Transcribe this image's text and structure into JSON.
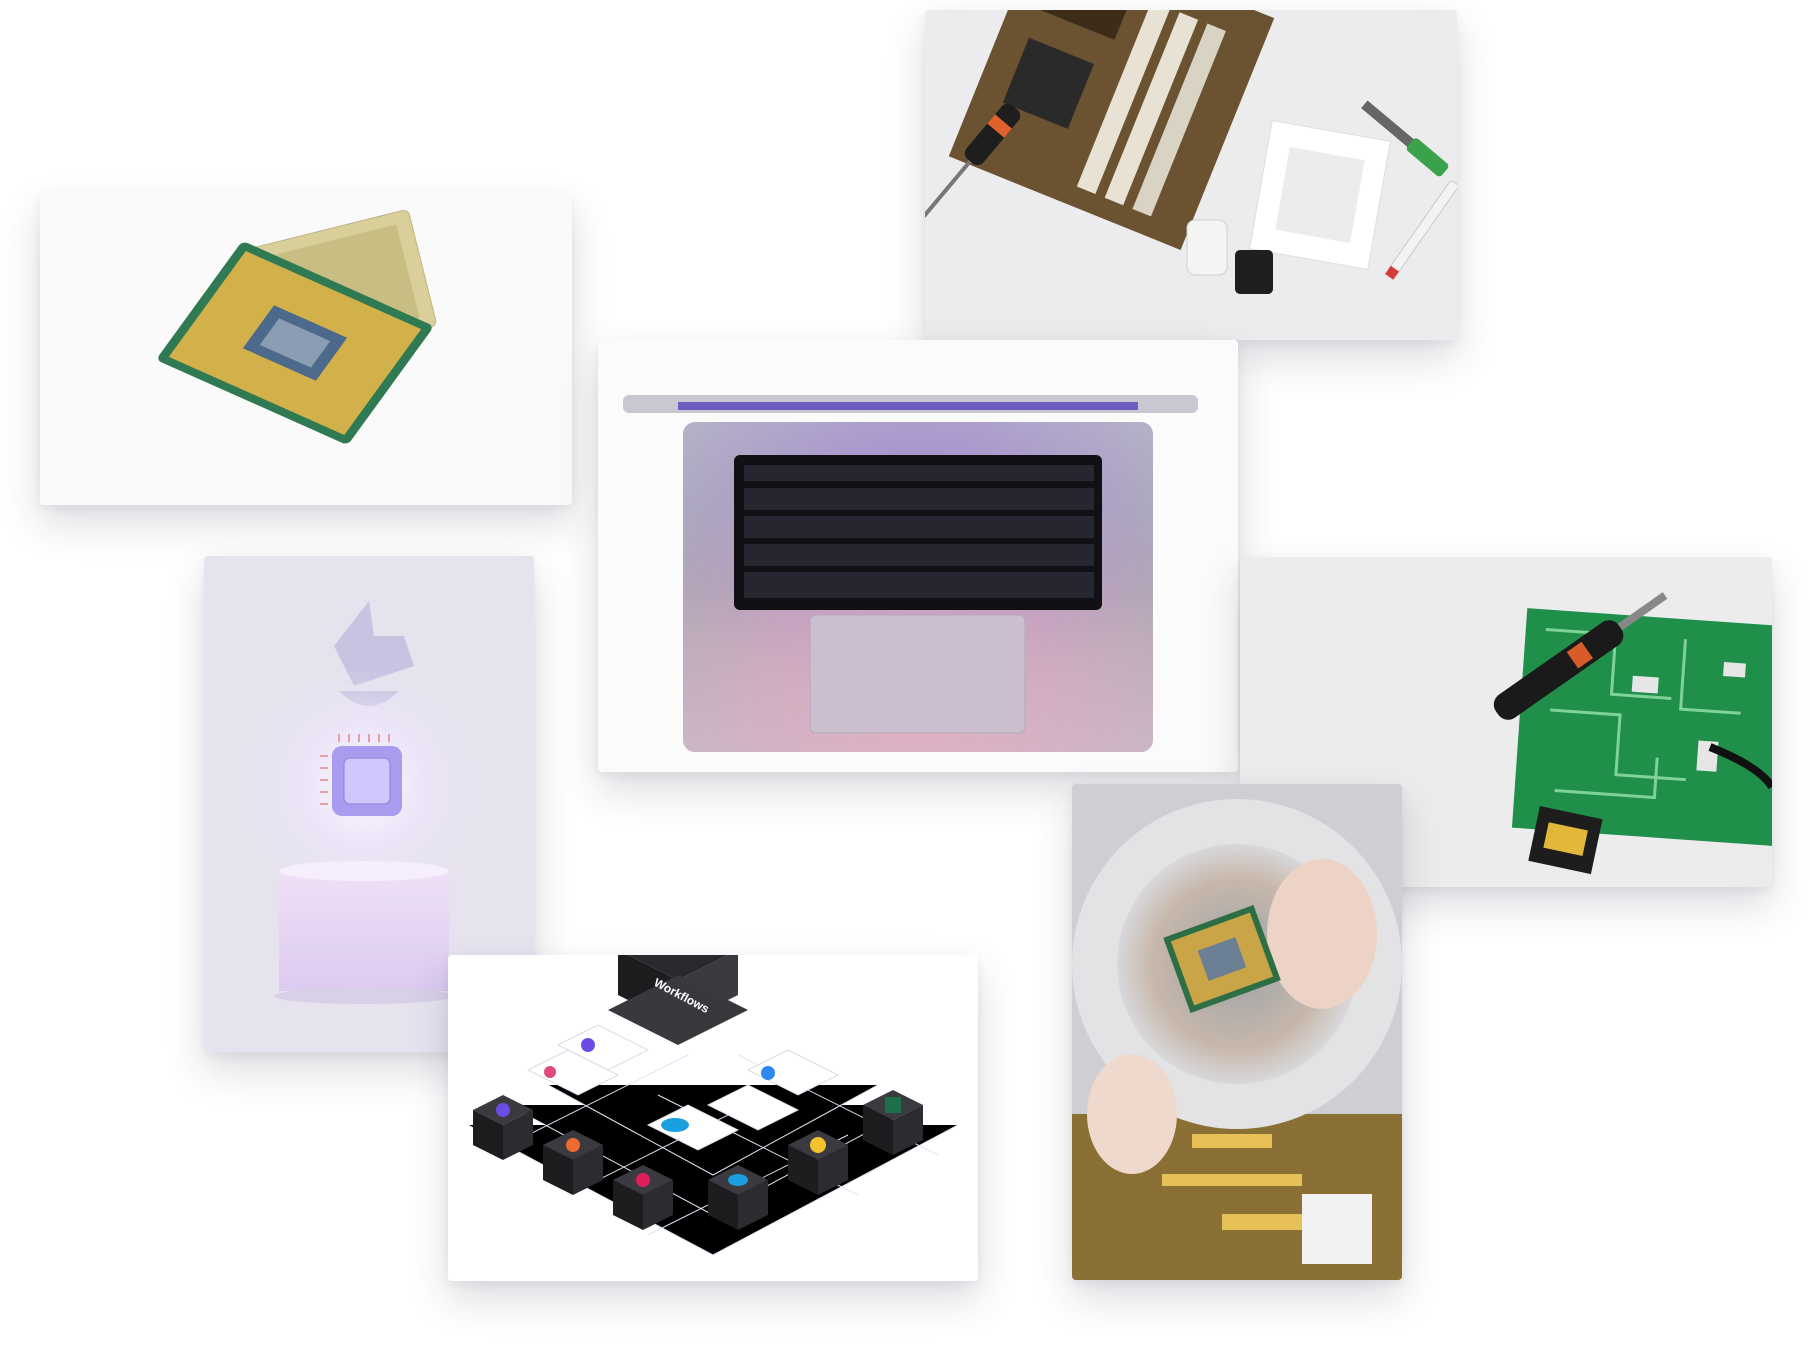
{
  "collage": {
    "photos": [
      {
        "id": "cpu-chips"
      },
      {
        "id": "motherboard-tools"
      },
      {
        "id": "laptop-top-view"
      },
      {
        "id": "chip-illustration"
      },
      {
        "id": "pcb-soldering"
      },
      {
        "id": "workflows-diagram"
      },
      {
        "id": "magnifier-cpu"
      }
    ],
    "workflows_label": "Workflows"
  }
}
